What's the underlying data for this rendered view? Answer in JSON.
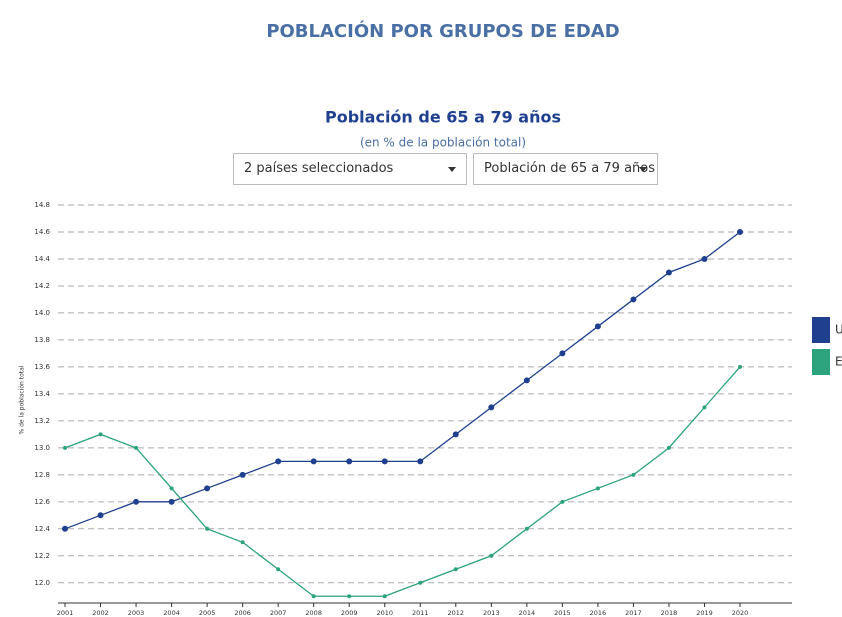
{
  "header": {
    "title": "POBLACIÓN POR GRUPOS DE EDAD"
  },
  "controls": {
    "countries": "2 países seleccionados",
    "indicator": "Población de 65 a 79 años"
  },
  "chart_data": {
    "type": "line",
    "title": "Población de 65 a 79 años",
    "subtitle": "(en % de la población total)",
    "y_label": "% de la población total",
    "categories": [
      "2001",
      "2002",
      "2003",
      "2004",
      "2005",
      "2006",
      "2007",
      "2008",
      "2009",
      "2010",
      "2011",
      "2012",
      "2013",
      "2014",
      "2015",
      "2016",
      "2017",
      "2018",
      "2019",
      "2020"
    ],
    "series": [
      {
        "name": "U",
        "color": "#1f3f8f",
        "values": [
          12.4,
          12.5,
          12.6,
          12.6,
          12.7,
          12.8,
          12.9,
          12.9,
          12.9,
          12.9,
          12.9,
          13.1,
          13.3,
          13.5,
          13.7,
          13.9,
          14.1,
          14.3,
          14.4,
          14.6
        ]
      },
      {
        "name": "E",
        "color": "#2ca37c",
        "values": [
          13.0,
          13.1,
          13.0,
          12.7,
          12.4,
          12.3,
          12.1,
          11.9,
          11.9,
          11.9,
          12.0,
          12.1,
          12.2,
          12.4,
          12.6,
          12.7,
          12.8,
          13.0,
          13.3,
          13.6
        ]
      }
    ],
    "ylim": [
      11.85,
      14.8
    ],
    "yticks": [
      {
        "value": 12,
        "label": "12.0"
      },
      12.2,
      12.4,
      12.6,
      12.8,
      {
        "value": 13,
        "label": "13.0"
      },
      13.2,
      13.4,
      13.6,
      13.8,
      {
        "value": 14,
        "label": "14.0"
      },
      14.2,
      14.4,
      14.6,
      14.8
    ],
    "grid": true
  }
}
